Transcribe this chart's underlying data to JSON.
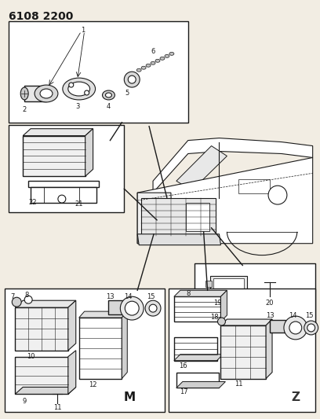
{
  "title": "6108 2200",
  "bg_color": "#f2ede3",
  "line_color": "#1a1a1a",
  "fig_width": 4.08,
  "fig_height": 5.33,
  "dpi": 100
}
